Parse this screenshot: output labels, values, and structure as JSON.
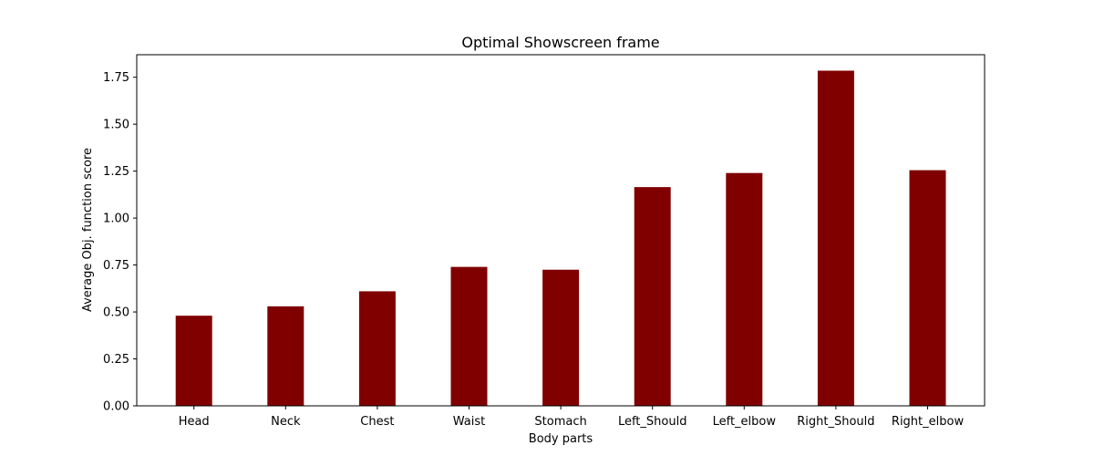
{
  "chart_data": {
    "type": "bar",
    "title": "Optimal Showscreen frame",
    "xlabel": "Body parts",
    "ylabel": "Average Obj. function score",
    "categories": [
      "Head",
      "Neck",
      "Chest",
      "Waist",
      "Stomach",
      "Left_Should",
      "Left_elbow",
      "Right_Should",
      "Right_elbow"
    ],
    "values": [
      0.48,
      0.53,
      0.61,
      0.74,
      0.725,
      1.165,
      1.24,
      1.785,
      1.255
    ],
    "ylim": [
      0,
      1.87
    ],
    "yticks": [
      "0.00",
      "0.25",
      "0.50",
      "0.75",
      "1.00",
      "1.25",
      "1.50",
      "1.75"
    ],
    "bar_color": "#800000",
    "grid": false,
    "legend": "none"
  }
}
